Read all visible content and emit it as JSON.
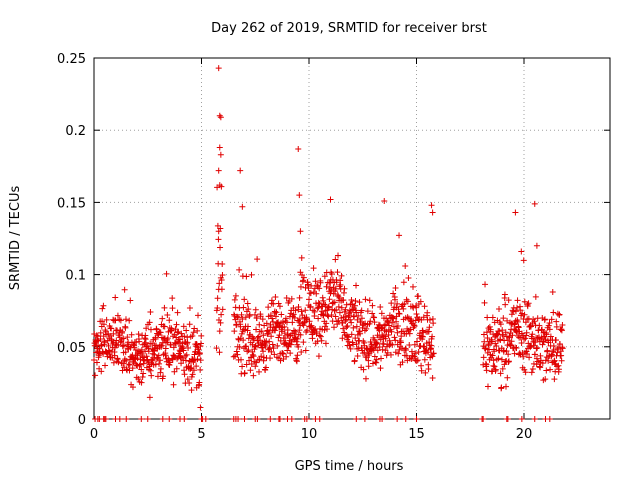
{
  "chart_data": {
    "type": "scatter",
    "title": "Day 262 of 2019, SRMTID for receiver brst",
    "xlabel": "GPS time / hours",
    "ylabel": "SRMTID / TECUs",
    "xlim": [
      0,
      24
    ],
    "ylim": [
      0,
      0.25
    ],
    "xticks": [
      0,
      5,
      10,
      15,
      20
    ],
    "xtick_labels": [
      "0",
      "5",
      "10",
      "15",
      "20"
    ],
    "yticks": [
      0,
      0.05,
      0.1,
      0.15,
      0.2,
      0.25
    ],
    "ytick_labels": [
      "0",
      "0.05",
      "0.1",
      "0.15",
      "0.2",
      "0.25"
    ],
    "grid": true,
    "marker": "+",
    "series": [
      {
        "name": "SRMTID",
        "color": "#e00000",
        "segments": [
          {
            "x_start": 0.0,
            "x_end": 5.0,
            "mean": 0.048,
            "spread": 0.013
          },
          {
            "x_start": 5.7,
            "x_end": 6.0,
            "mean": 0.075,
            "spread": 0.04
          },
          {
            "x_start": 6.5,
            "x_end": 9.5,
            "mean": 0.058,
            "spread": 0.014
          },
          {
            "x_start": 9.5,
            "x_end": 11.5,
            "mean": 0.08,
            "spread": 0.017
          },
          {
            "x_start": 11.5,
            "x_end": 15.8,
            "mean": 0.06,
            "spread": 0.015
          },
          {
            "x_start": 18.1,
            "x_end": 21.8,
            "mean": 0.055,
            "spread": 0.016
          }
        ],
        "highlights": [
          {
            "x": 5.8,
            "y": 0.243
          },
          {
            "x": 5.85,
            "y": 0.21
          },
          {
            "x": 5.9,
            "y": 0.209
          },
          {
            "x": 5.85,
            "y": 0.188
          },
          {
            "x": 5.9,
            "y": 0.183
          },
          {
            "x": 5.8,
            "y": 0.172
          },
          {
            "x": 5.85,
            "y": 0.162
          },
          {
            "x": 5.8,
            "y": 0.13
          },
          {
            "x": 6.8,
            "y": 0.172
          },
          {
            "x": 6.9,
            "y": 0.147
          },
          {
            "x": 9.5,
            "y": 0.187
          },
          {
            "x": 9.55,
            "y": 0.155
          },
          {
            "x": 9.6,
            "y": 0.13
          },
          {
            "x": 11.0,
            "y": 0.152
          },
          {
            "x": 13.5,
            "y": 0.151
          },
          {
            "x": 15.7,
            "y": 0.148
          },
          {
            "x": 15.75,
            "y": 0.143
          },
          {
            "x": 19.6,
            "y": 0.143
          },
          {
            "x": 20.5,
            "y": 0.149
          },
          {
            "x": 20.6,
            "y": 0.12
          },
          {
            "x": 4.95,
            "y": 0.008
          },
          {
            "x": 2.6,
            "y": 0.015
          }
        ],
        "zero_markers": [
          0.05,
          0.18,
          0.25,
          0.45,
          0.5,
          0.55,
          1.0,
          1.2,
          1.5,
          2.2,
          2.5,
          3.2,
          3.5,
          4.0,
          4.2,
          5.0,
          5.05,
          5.2,
          6.5,
          6.6,
          6.7,
          7.0,
          7.5,
          7.6,
          8.2,
          8.6,
          8.65,
          9.0,
          9.2,
          9.8,
          9.9,
          10.3,
          10.5,
          12.2,
          12.6,
          13.3,
          13.4,
          14.1,
          14.5,
          15.0,
          18.05,
          18.1,
          19.2,
          19.25,
          19.9,
          20.5,
          21.0,
          21.2
        ]
      }
    ]
  }
}
